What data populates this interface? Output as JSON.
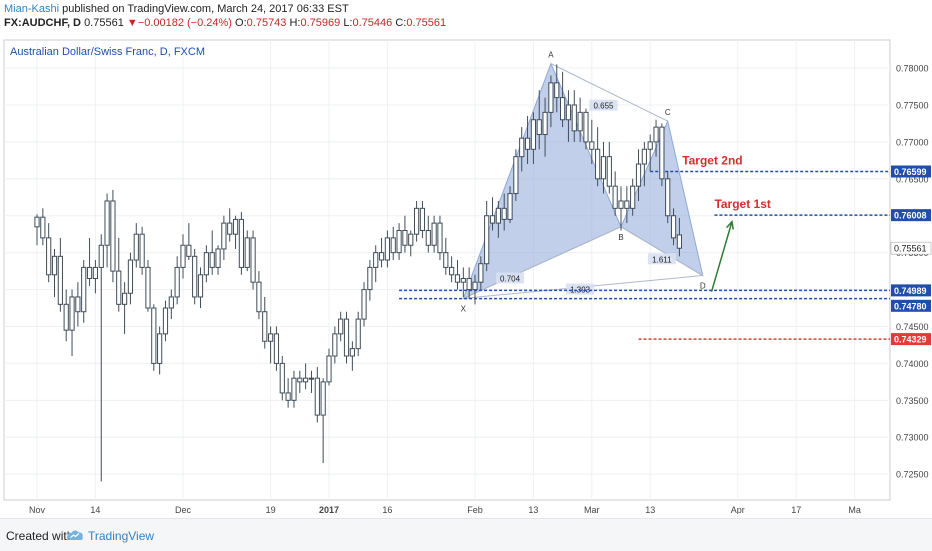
{
  "header": {
    "author": "Mian-Kashi",
    "published_text": " published on TradingView.com, March 24, 2017 06:33 EST",
    "symbol": "FX:AUDCHF, D",
    "last": "0.75561",
    "change_arrow": "▼",
    "change": "−0.00182 (−0.24%)",
    "open_label": "O:",
    "open": "0.75743",
    "high_label": "H:",
    "high": "0.75969",
    "low_label": "L:",
    "low": "0.75446",
    "close_label": "C:",
    "close": "0.75561"
  },
  "footer": {
    "created_with": "Created with",
    "brand": "TradingView",
    "logo_icon": "tradingview-cloud-icon"
  },
  "colors": {
    "up": "#ffffff",
    "down": "#ffffff",
    "candle_border": "#3f4d5a",
    "pattern_fill": "#8fa8d8",
    "blue_line": "#1f4fa8",
    "red_line": "#e53935",
    "target_text": "#d32f2f",
    "arrow": "#2e7d32",
    "price_tag": "#1f4fa8",
    "price_tag_red": "#e53935"
  },
  "chart_data": {
    "type": "candlestick",
    "title": "Australian Dollar/Swiss Franc, D, FXCM",
    "ylim": [
      0.7215,
      0.7838
    ],
    "y_ticks": [
      "0.72500",
      "0.73000",
      "0.73500",
      "0.74000",
      "0.74500",
      "0.75000",
      "0.75500",
      "0.76000",
      "0.76500",
      "0.77000",
      "0.77500",
      "0.78000"
    ],
    "x_ticks": [
      {
        "label": "Nov",
        "day": 0
      },
      {
        "label": "14",
        "day": 10
      },
      {
        "label": "Dec",
        "day": 25
      },
      {
        "label": "19",
        "day": 40
      },
      {
        "label": "2017",
        "day": 50
      },
      {
        "label": "16",
        "day": 60
      },
      {
        "label": "Feb",
        "day": 75
      },
      {
        "label": "13",
        "day": 85
      },
      {
        "label": "Mar",
        "day": 95
      },
      {
        "label": "13",
        "day": 105
      },
      {
        "label": "Apr",
        "day": 120
      },
      {
        "label": "17",
        "day": 130
      },
      {
        "label": "Ma",
        "day": 140
      }
    ],
    "series": [
      {
        "type": "candlestick",
        "values": [
          [
            0.7585,
            0.7602,
            0.756,
            0.7598
          ],
          [
            0.7598,
            0.761,
            0.756,
            0.757
          ],
          [
            0.757,
            0.759,
            0.751,
            0.752
          ],
          [
            0.752,
            0.7555,
            0.749,
            0.7545
          ],
          [
            0.7545,
            0.757,
            0.747,
            0.748
          ],
          [
            0.748,
            0.75,
            0.743,
            0.7445
          ],
          [
            0.7445,
            0.75,
            0.741,
            0.749
          ],
          [
            0.749,
            0.751,
            0.745,
            0.747
          ],
          [
            0.747,
            0.754,
            0.7455,
            0.753
          ],
          [
            0.753,
            0.757,
            0.7505,
            0.7515
          ],
          [
            0.7515,
            0.754,
            0.7495,
            0.753
          ],
          [
            0.753,
            0.7575,
            0.724,
            0.756
          ],
          [
            0.756,
            0.763,
            0.753,
            0.762
          ],
          [
            0.762,
            0.7635,
            0.751,
            0.7525
          ],
          [
            0.7525,
            0.757,
            0.747,
            0.748
          ],
          [
            0.748,
            0.751,
            0.744,
            0.7495
          ],
          [
            0.7495,
            0.755,
            0.748,
            0.754
          ],
          [
            0.754,
            0.759,
            0.753,
            0.7575
          ],
          [
            0.7575,
            0.7585,
            0.752,
            0.753
          ],
          [
            0.753,
            0.754,
            0.747,
            0.7475
          ],
          [
            0.7475,
            0.748,
            0.739,
            0.74
          ],
          [
            0.74,
            0.745,
            0.7385,
            0.744
          ],
          [
            0.744,
            0.7485,
            0.743,
            0.7475
          ],
          [
            0.7475,
            0.75,
            0.746,
            0.749
          ],
          [
            0.749,
            0.7545,
            0.748,
            0.753
          ],
          [
            0.753,
            0.7575,
            0.7515,
            0.756
          ],
          [
            0.756,
            0.759,
            0.754,
            0.7545
          ],
          [
            0.7545,
            0.7555,
            0.748,
            0.749
          ],
          [
            0.749,
            0.753,
            0.7475,
            0.752
          ],
          [
            0.752,
            0.756,
            0.751,
            0.755
          ],
          [
            0.755,
            0.758,
            0.752,
            0.753
          ],
          [
            0.753,
            0.756,
            0.752,
            0.7555
          ],
          [
            0.7555,
            0.76,
            0.754,
            0.759
          ],
          [
            0.759,
            0.761,
            0.7565,
            0.7575
          ],
          [
            0.7575,
            0.76,
            0.7555,
            0.7595
          ],
          [
            0.7595,
            0.7605,
            0.752,
            0.753
          ],
          [
            0.753,
            0.758,
            0.7525,
            0.757
          ],
          [
            0.757,
            0.758,
            0.75,
            0.751
          ],
          [
            0.751,
            0.7525,
            0.746,
            0.747
          ],
          [
            0.747,
            0.749,
            0.742,
            0.743
          ],
          [
            0.743,
            0.745,
            0.74,
            0.744
          ],
          [
            0.744,
            0.745,
            0.739,
            0.74
          ],
          [
            0.74,
            0.741,
            0.735,
            0.736
          ],
          [
            0.736,
            0.738,
            0.734,
            0.735
          ],
          [
            0.735,
            0.739,
            0.734,
            0.738
          ],
          [
            0.738,
            0.739,
            0.736,
            0.7375
          ],
          [
            0.7375,
            0.74,
            0.7365,
            0.738
          ],
          [
            0.738,
            0.739,
            0.736,
            0.738
          ],
          [
            0.738,
            0.7395,
            0.732,
            0.733
          ],
          [
            0.733,
            0.738,
            0.7265,
            0.7375
          ],
          [
            0.7375,
            0.742,
            0.737,
            0.741
          ],
          [
            0.741,
            0.745,
            0.74,
            0.744
          ],
          [
            0.744,
            0.747,
            0.743,
            0.746
          ],
          [
            0.746,
            0.747,
            0.74,
            0.741
          ],
          [
            0.741,
            0.743,
            0.739,
            0.742
          ],
          [
            0.742,
            0.747,
            0.741,
            0.746
          ],
          [
            0.746,
            0.751,
            0.745,
            0.75
          ],
          [
            0.75,
            0.754,
            0.7485,
            0.753
          ],
          [
            0.753,
            0.756,
            0.751,
            0.755
          ],
          [
            0.755,
            0.757,
            0.753,
            0.754
          ],
          [
            0.754,
            0.758,
            0.753,
            0.757
          ],
          [
            0.757,
            0.7585,
            0.754,
            0.755
          ],
          [
            0.755,
            0.759,
            0.754,
            0.758
          ],
          [
            0.758,
            0.76,
            0.755,
            0.756
          ],
          [
            0.756,
            0.758,
            0.7545,
            0.7575
          ],
          [
            0.7575,
            0.762,
            0.7565,
            0.761
          ],
          [
            0.761,
            0.762,
            0.757,
            0.758
          ],
          [
            0.758,
            0.76,
            0.755,
            0.756
          ],
          [
            0.756,
            0.76,
            0.755,
            0.759
          ],
          [
            0.759,
            0.76,
            0.754,
            0.755
          ],
          [
            0.755,
            0.757,
            0.752,
            0.753
          ],
          [
            0.753,
            0.7545,
            0.751,
            0.752
          ],
          [
            0.752,
            0.754,
            0.75,
            0.751
          ],
          [
            0.751,
            0.753,
            0.749,
            0.7515
          ],
          [
            0.7515,
            0.753,
            0.7488,
            0.75
          ],
          [
            0.75,
            0.752,
            0.748,
            0.751
          ],
          [
            0.751,
            0.7545,
            0.75,
            0.7535
          ],
          [
            0.7535,
            0.762,
            0.7525,
            0.76
          ],
          [
            0.76,
            0.7625,
            0.758,
            0.759
          ],
          [
            0.759,
            0.762,
            0.757,
            0.761
          ],
          [
            0.761,
            0.763,
            0.758,
            0.7595
          ],
          [
            0.7595,
            0.764,
            0.759,
            0.763
          ],
          [
            0.763,
            0.769,
            0.762,
            0.768
          ],
          [
            0.768,
            0.772,
            0.766,
            0.7705
          ],
          [
            0.7705,
            0.7735,
            0.767,
            0.769
          ],
          [
            0.769,
            0.774,
            0.767,
            0.773
          ],
          [
            0.773,
            0.777,
            0.769,
            0.771
          ],
          [
            0.771,
            0.776,
            0.768,
            0.774
          ],
          [
            0.774,
            0.779,
            0.772,
            0.778
          ],
          [
            0.778,
            0.7805,
            0.774,
            0.776
          ],
          [
            0.776,
            0.7795,
            0.772,
            0.773
          ],
          [
            0.773,
            0.777,
            0.77,
            0.775
          ],
          [
            0.775,
            0.777,
            0.77,
            0.7715
          ],
          [
            0.7715,
            0.776,
            0.77,
            0.774
          ],
          [
            0.774,
            0.7745,
            0.769,
            0.77
          ],
          [
            0.77,
            0.773,
            0.767,
            0.769
          ],
          [
            0.769,
            0.772,
            0.764,
            0.765
          ],
          [
            0.765,
            0.77,
            0.763,
            0.768
          ],
          [
            0.768,
            0.77,
            0.763,
            0.764
          ],
          [
            0.764,
            0.766,
            0.76,
            0.761
          ],
          [
            0.761,
            0.764,
            0.758,
            0.762
          ],
          [
            0.762,
            0.764,
            0.759,
            0.761
          ],
          [
            0.761,
            0.765,
            0.76,
            0.764
          ],
          [
            0.764,
            0.769,
            0.762,
            0.767
          ],
          [
            0.767,
            0.77,
            0.764,
            0.769
          ],
          [
            0.769,
            0.771,
            0.766,
            0.77
          ],
          [
            0.77,
            0.773,
            0.768,
            0.772
          ],
          [
            0.772,
            0.7725,
            0.764,
            0.765
          ],
          [
            0.765,
            0.766,
            0.759,
            0.76
          ],
          [
            0.76,
            0.761,
            0.756,
            0.757
          ],
          [
            0.7574,
            0.7597,
            0.7545,
            0.7556
          ]
        ]
      }
    ],
    "pattern": {
      "points": [
        {
          "label": "X",
          "day": 73,
          "price": 0.7488
        },
        {
          "label": "A",
          "day": 88,
          "price": 0.7806
        },
        {
          "label": "B",
          "day": 100,
          "price": 0.7585
        },
        {
          "label": "C",
          "day": 108,
          "price": 0.7728
        },
        {
          "label": "D",
          "day": 114,
          "price": 0.7519
        }
      ],
      "ratios": [
        {
          "label": "0.704",
          "day": 81,
          "price": 0.7515
        },
        {
          "label": "0.655",
          "day": 97,
          "price": 0.7749
        },
        {
          "label": "1.611",
          "day": 107,
          "price": 0.7541
        },
        {
          "label": "1.393",
          "day": 93,
          "price": 0.75
        }
      ]
    },
    "levels": [
      {
        "label": "Target 2nd",
        "price": 0.76599,
        "price_text": "0.76599",
        "color": "red_text",
        "from_day": 105
      },
      {
        "label": "Target 1st",
        "price": 0.76008,
        "price_text": "0.76008",
        "color": "red_text",
        "from_day": 116
      },
      {
        "label": "",
        "price": 0.74989,
        "price_text": "0.74989",
        "from_day": 62
      },
      {
        "label": "",
        "price": 0.74878,
        "price_text": "",
        "from_day": 62
      },
      {
        "label": "",
        "price": 0.74329,
        "price_text": "0.74329",
        "from_day": 103,
        "red": true
      }
    ],
    "extra_price_tags": [
      {
        "price": 0.7478,
        "price_text": "0.74780"
      },
      {
        "price": 0.75561,
        "price_text": "0.75561",
        "last": true
      }
    ],
    "arrow": {
      "from_day": 115.5,
      "from_price": 0.7497,
      "to_day": 119,
      "to_price": 0.7592
    }
  }
}
